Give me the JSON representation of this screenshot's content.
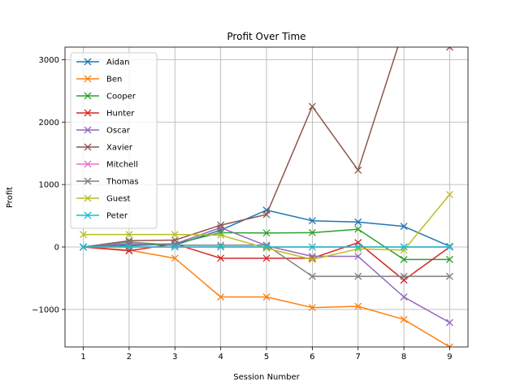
{
  "chart_data": {
    "type": "line",
    "title": "Profit Over Time",
    "xlabel": "Session Number",
    "ylabel": "Profit",
    "x": [
      1,
      2,
      3,
      4,
      5,
      6,
      7,
      8,
      9
    ],
    "xlim": [
      0.6,
      9.4
    ],
    "ylim": [
      -1600,
      3200
    ],
    "xticks": [
      1,
      2,
      3,
      4,
      5,
      6,
      7,
      8,
      9
    ],
    "yticks": [
      -1000,
      0,
      1000,
      2000,
      3000
    ],
    "ytick_labels": [
      "−1000",
      "0",
      "1000",
      "2000",
      "3000"
    ],
    "grid": true,
    "legend_position": "upper-left",
    "marker": "x",
    "series": [
      {
        "name": "Aidan",
        "color": "#1f77b4",
        "values": [
          0,
          50,
          30,
          270,
          590,
          420,
          400,
          330,
          10
        ]
      },
      {
        "name": "Ben",
        "color": "#ff7f0e",
        "values": [
          0,
          -50,
          -180,
          -800,
          -800,
          -970,
          -950,
          -1160,
          -1600
        ]
      },
      {
        "name": "Cooper",
        "color": "#2ca02c",
        "values": [
          0,
          20,
          50,
          230,
          225,
          230,
          285,
          -200,
          -200
        ]
      },
      {
        "name": "Hunter",
        "color": "#d62728",
        "values": [
          0,
          -60,
          50,
          -180,
          -180,
          -180,
          70,
          -530,
          0
        ]
      },
      {
        "name": "Oscar",
        "color": "#9467bd",
        "values": [
          0,
          40,
          50,
          310,
          20,
          -150,
          -150,
          -800,
          -1210
        ]
      },
      {
        "name": "Xavier",
        "color": "#8c564b",
        "values": [
          0,
          100,
          110,
          350,
          520,
          2250,
          1230,
          3500,
          3200
        ]
      },
      {
        "name": "Mitchell",
        "color": "#e377c2",
        "values": [
          0,
          0,
          0,
          0,
          0,
          0,
          0,
          0,
          0
        ]
      },
      {
        "name": "Thomas",
        "color": "#7f7f7f",
        "values": [
          0,
          80,
          30,
          30,
          30,
          -470,
          -470,
          -470,
          -470
        ]
      },
      {
        "name": "Guest",
        "color": "#bcbd22",
        "values": [
          200,
          200,
          200,
          190,
          -20,
          -200,
          -30,
          -50,
          840
        ]
      },
      {
        "name": "Peter",
        "color": "#17becf",
        "values": [
          0,
          0,
          0,
          0,
          0,
          0,
          0,
          0,
          0
        ]
      }
    ]
  }
}
